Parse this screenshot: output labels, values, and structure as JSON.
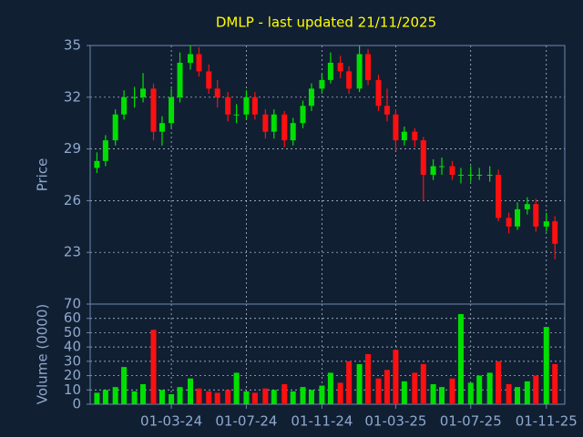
{
  "chart_data": [
    {
      "type": "candlestick",
      "title": "DMLP - last updated 21/11/2025",
      "ylabel": "Price",
      "x": [
        "01-11-23",
        "15-11-23",
        "01-12-23",
        "15-12-23",
        "01-01-24",
        "15-01-24",
        "01-02-24",
        "15-02-24",
        "01-03-24",
        "15-03-24",
        "01-04-24",
        "15-04-24",
        "01-05-24",
        "15-05-24",
        "01-06-24",
        "15-06-24",
        "01-07-24",
        "15-07-24",
        "01-08-24",
        "15-08-24",
        "01-09-24",
        "15-09-24",
        "01-10-24",
        "15-10-24",
        "01-11-24",
        "15-11-24",
        "01-12-24",
        "15-12-24",
        "01-01-25",
        "15-01-25",
        "01-02-25",
        "15-02-25",
        "01-03-25",
        "15-03-25",
        "01-04-25",
        "15-04-25",
        "01-05-25",
        "15-05-25",
        "01-06-25",
        "15-06-25",
        "01-07-25",
        "15-07-25",
        "01-08-25",
        "15-08-25",
        "01-09-25",
        "15-09-25",
        "01-10-25",
        "15-10-25",
        "01-11-25",
        "15-11-25"
      ],
      "open": [
        27.9,
        28.3,
        29.5,
        31,
        32,
        32,
        32.5,
        30,
        30.5,
        32,
        34,
        34.5,
        33.5,
        32.5,
        32,
        31,
        31,
        32,
        31,
        30,
        31,
        29.5,
        30.5,
        31.5,
        32.5,
        33,
        34,
        33.5,
        32.5,
        34.5,
        33,
        31.5,
        31,
        29.5,
        30,
        29.5,
        27.5,
        28,
        28,
        27.5,
        27.5,
        27.5,
        27.5,
        27.5,
        25,
        24.5,
        25.5,
        25.8,
        24.5,
        24.8
      ],
      "high": [
        28.8,
        29.8,
        31.3,
        32.4,
        32.6,
        33.4,
        32.8,
        30.9,
        32.5,
        34.6,
        35,
        34.9,
        33.9,
        33,
        32.3,
        31.6,
        32.4,
        32.3,
        31.3,
        31.3,
        31.2,
        30.8,
        31.8,
        32.8,
        33.4,
        34.6,
        34.4,
        33.8,
        35,
        34.8,
        33.3,
        32.5,
        31.3,
        30.3,
        30.2,
        29.7,
        28.4,
        28.5,
        28.3,
        27.9,
        28,
        27.9,
        28,
        27.8,
        25.3,
        25.9,
        26.2,
        26.1,
        25.3,
        25.1
      ],
      "low": [
        27.6,
        28,
        29.2,
        30.7,
        31.4,
        31.7,
        29.5,
        29.2,
        30.2,
        31.7,
        33.6,
        33.2,
        32.2,
        31.4,
        30.6,
        30.5,
        30.7,
        30.7,
        29.6,
        29.6,
        29.1,
        29.2,
        30.2,
        31.2,
        32.2,
        32.8,
        33.1,
        32.2,
        32.3,
        32.7,
        31.2,
        30.6,
        28.9,
        29.2,
        29.1,
        26,
        27.2,
        27.5,
        27.2,
        27,
        27.1,
        27.2,
        27.1,
        24.8,
        24.1,
        24.3,
        25.2,
        24.2,
        24.2,
        22.6
      ],
      "close": [
        28.3,
        29.5,
        31,
        32,
        32,
        32.5,
        30,
        30.5,
        32,
        34,
        34.5,
        33.5,
        32.5,
        32,
        31,
        31,
        32,
        31,
        30,
        31,
        29.5,
        30.5,
        31.5,
        32.5,
        33,
        34,
        33.5,
        32.5,
        34.5,
        33,
        31.5,
        31,
        29.5,
        30,
        29.5,
        27.5,
        28,
        28,
        27.5,
        27.5,
        27.5,
        27.5,
        27.5,
        25,
        24.5,
        25.5,
        25.8,
        24.5,
        24.8,
        23.5
      ],
      "up_color": "#00e000",
      "down_color": "#ff1010",
      "xlim": [
        "21-10-23",
        "01-12-25"
      ],
      "ylim": [
        20,
        35
      ],
      "yticks": [
        23,
        26,
        29,
        32,
        35
      ],
      "grid": true
    },
    {
      "type": "bar",
      "ylabel": "Volume (0000)",
      "values": [
        8,
        10,
        12,
        26,
        9,
        14,
        52,
        10,
        7,
        12,
        18,
        11,
        9,
        8,
        10,
        22,
        9,
        8,
        11,
        10,
        14,
        9,
        12,
        10,
        13,
        22,
        15,
        30,
        28,
        35,
        18,
        24,
        38,
        16,
        22,
        28,
        14,
        12,
        18,
        63,
        15,
        20,
        22,
        30,
        14,
        12,
        16,
        20,
        54,
        28
      ],
      "xticks": [
        "01-03-24",
        "01-07-24",
        "01-11-24",
        "01-03-25",
        "01-07-25",
        "01-11-25"
      ],
      "ylim": [
        0,
        70
      ],
      "yticks": [
        0,
        10,
        20,
        30,
        40,
        50,
        60,
        70
      ],
      "grid": true
    }
  ]
}
